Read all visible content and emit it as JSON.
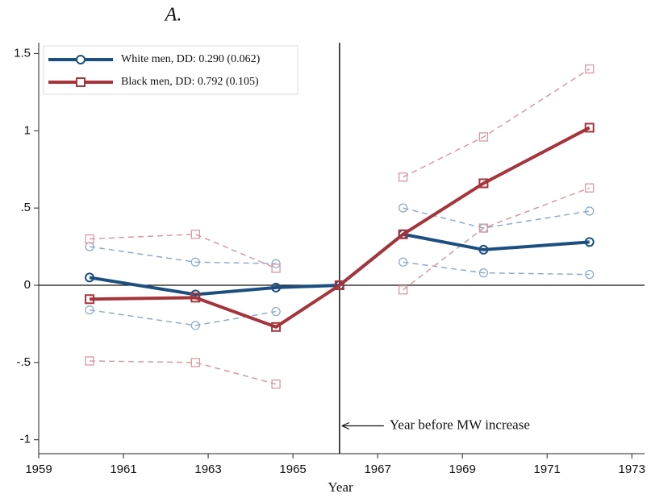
{
  "chart_data": {
    "type": "line",
    "title": "A.",
    "x_label": "Year",
    "x": [
      1960.2,
      1962.7,
      1964.6,
      1966.1,
      1967.6,
      1969.5,
      1972.0
    ],
    "series": [
      {
        "name": "White men, DD: 0.290 (0.062)",
        "color": "#1c4f80",
        "ci_color": "#8fabc9",
        "marker": "circle",
        "values": [
          0.05,
          -0.06,
          -0.015,
          0,
          0.33,
          0.23,
          0.28
        ],
        "ci_upper": [
          0.25,
          0.15,
          0.14,
          null,
          0.5,
          0.37,
          0.48
        ],
        "ci_lower": [
          -0.16,
          -0.26,
          -0.17,
          null,
          0.15,
          0.08,
          0.07
        ]
      },
      {
        "name": "Black men, DD: 0.792 (0.105)",
        "color": "#a5343b",
        "ci_color": "#d69a9f",
        "marker": "square",
        "values": [
          -0.09,
          -0.08,
          -0.27,
          0,
          0.33,
          0.66,
          1.02
        ],
        "ci_upper": [
          0.3,
          0.33,
          0.11,
          null,
          0.7,
          0.96,
          1.4
        ],
        "ci_lower": [
          -0.49,
          -0.5,
          -0.64,
          null,
          -0.03,
          0.37,
          0.63
        ]
      }
    ],
    "vline": 1966.1,
    "annotation": {
      "text": "Year before MW increase",
      "y": -0.91
    },
    "xlim": [
      1959,
      1973.3
    ],
    "xticks": [
      1959,
      1961,
      1963,
      1965,
      1967,
      1969,
      1971,
      1973
    ],
    "ylim": [
      -1.09,
      1.57
    ],
    "yticks": [
      {
        "value": -1,
        "label": "-1"
      },
      {
        "value": -0.5,
        "label": "-.5"
      },
      0,
      {
        "value": 0.5,
        "label": ".5"
      },
      1,
      1.5
    ],
    "legend": "top-left"
  }
}
